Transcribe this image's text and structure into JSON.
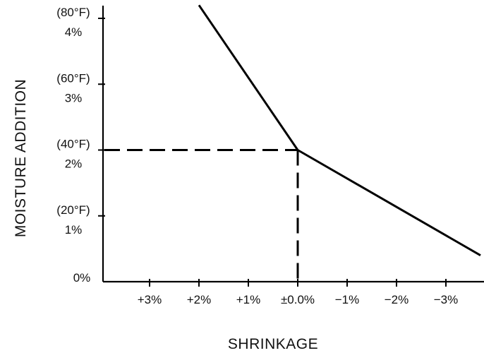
{
  "chart_data": {
    "type": "line",
    "xlabel": "SHRINKAGE",
    "ylabel": "MOISTURE ADDITION",
    "x_axis": {
      "reversed": true,
      "range": [
        3.5,
        -3.7
      ],
      "ticks": [
        {
          "value": 3,
          "label": "+3%"
        },
        {
          "value": 2,
          "label": "+2%"
        },
        {
          "value": 1,
          "label": "+1%"
        },
        {
          "value": 0,
          "label": "±0.0%"
        },
        {
          "value": -1,
          "label": "−1%"
        },
        {
          "value": -2,
          "label": "−2%"
        },
        {
          "value": -3,
          "label": "−3%"
        }
      ]
    },
    "y_axis": {
      "range": [
        0,
        4.2
      ],
      "ticks": [
        {
          "value": 0,
          "label": "0%",
          "temp": ""
        },
        {
          "value": 1,
          "label": "1%",
          "temp": "(20°F)"
        },
        {
          "value": 2,
          "label": "2%",
          "temp": "(40°F)"
        },
        {
          "value": 3,
          "label": "3%",
          "temp": "(60°F)"
        },
        {
          "value": 4,
          "label": "4%",
          "temp": "(80°F)"
        }
      ]
    },
    "series": [
      {
        "points": [
          {
            "x": 2.0,
            "y": 4.2
          },
          {
            "x": 0.0,
            "y": 2.0
          },
          {
            "x": -3.7,
            "y": 0.4
          }
        ]
      }
    ],
    "annotations": [
      {
        "type": "dashed-guide",
        "x": 0.0,
        "y": 2.0
      }
    ],
    "grid": false
  }
}
